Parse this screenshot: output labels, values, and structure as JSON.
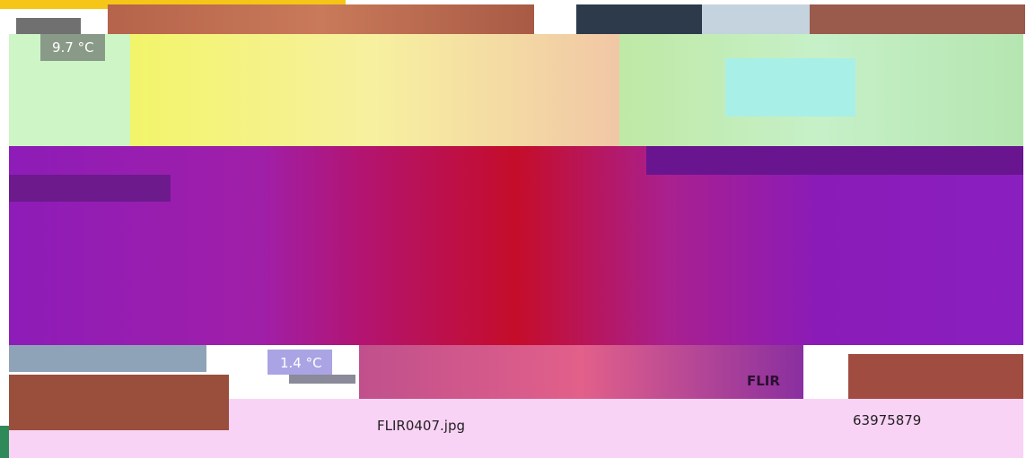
{
  "image": {
    "max_temp": "9.7 °C",
    "min_temp": "1.4 °C",
    "logo": "FLIR"
  },
  "caption": {
    "filename": "FLIR0407.jpg",
    "id": "63975879"
  }
}
